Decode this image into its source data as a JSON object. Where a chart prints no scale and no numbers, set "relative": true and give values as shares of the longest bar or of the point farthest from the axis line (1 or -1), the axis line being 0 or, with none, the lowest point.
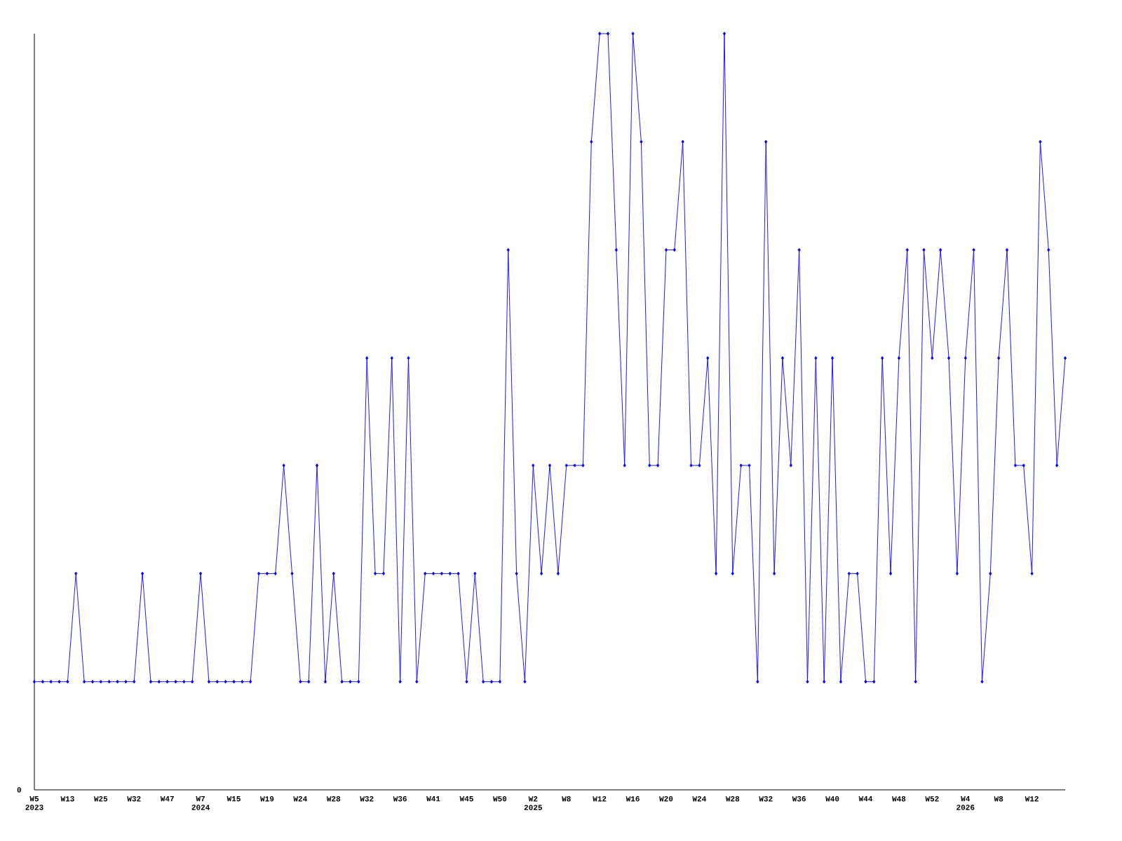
{
  "chart_data": {
    "type": "line",
    "relative": true,
    "marker": "diamond",
    "color": "#0000ff",
    "annotations": [
      "0"
    ],
    "categories": [
      "W5 2023",
      null,
      null,
      null,
      "W13",
      null,
      null,
      null,
      "W25",
      null,
      null,
      null,
      "W32",
      null,
      null,
      null,
      "W47",
      null,
      null,
      null,
      "W7 2024",
      null,
      null,
      null,
      "W15",
      null,
      null,
      null,
      "W19",
      null,
      null,
      null,
      "W24",
      null,
      null,
      null,
      "W28",
      null,
      null,
      null,
      "W32",
      null,
      null,
      null,
      "W36",
      null,
      null,
      null,
      "W41",
      null,
      null,
      null,
      "W45",
      null,
      null,
      null,
      "W50",
      null,
      null,
      null,
      "W2 2025",
      null,
      null,
      null,
      "W8",
      null,
      null,
      null,
      "W12",
      null,
      null,
      null,
      "W16",
      null,
      null,
      null,
      "W20",
      null,
      null,
      null,
      "W24",
      null,
      null,
      null,
      "W28",
      null,
      null,
      null,
      "W32",
      null,
      null,
      null,
      "W36",
      null,
      null,
      null,
      "W40",
      null,
      null,
      null,
      "W44",
      null,
      null,
      null,
      "W48",
      null,
      null,
      null,
      "W52",
      null,
      null,
      null,
      "W4 2026",
      null,
      null,
      null,
      "W8",
      null,
      null,
      null,
      "W12",
      null,
      null,
      null,
      null
    ],
    "values": [
      0.143,
      0.143,
      0.143,
      0.143,
      0.143,
      0.286,
      0.143,
      0.143,
      0.143,
      0.143,
      0.143,
      0.143,
      0.143,
      0.286,
      0.143,
      0.143,
      0.143,
      0.143,
      0.143,
      0.143,
      0.286,
      0.143,
      0.143,
      0.143,
      0.143,
      0.143,
      0.143,
      0.286,
      0.286,
      0.286,
      0.429,
      0.286,
      0.143,
      0.143,
      0.429,
      0.143,
      0.286,
      0.143,
      0.143,
      0.143,
      0.571,
      0.286,
      0.286,
      0.571,
      0.143,
      0.571,
      0.143,
      0.286,
      0.286,
      0.286,
      0.286,
      0.286,
      0.143,
      0.286,
      0.143,
      0.143,
      0.143,
      0.714,
      0.286,
      0.143,
      0.429,
      0.286,
      0.429,
      0.286,
      0.429,
      0.429,
      0.429,
      0.857,
      1,
      1,
      0.714,
      0.429,
      1,
      0.857,
      0.429,
      0.429,
      0.714,
      0.714,
      0.857,
      0.429,
      0.429,
      0.571,
      0.286,
      1,
      0.286,
      0.429,
      0.429,
      0.143,
      0.857,
      0.286,
      0.571,
      0.429,
      0.714,
      0.143,
      0.571,
      0.143,
      0.571,
      0.143,
      0.286,
      0.286,
      0.143,
      0.143,
      0.571,
      0.286,
      0.571,
      0.714,
      0.143,
      0.714,
      0.571,
      0.714,
      0.571,
      0.286,
      0.571,
      0.714,
      0.143,
      0.286,
      0.571,
      0.714,
      0.429,
      0.429,
      0.286,
      0.857,
      0.714,
      0.429,
      0.571
    ]
  }
}
